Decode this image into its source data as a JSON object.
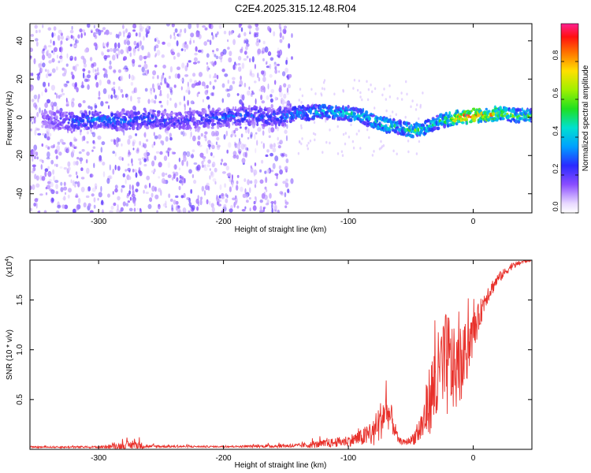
{
  "title": "C2E4.2025.315.12.48.R04",
  "colors": {
    "snr_line": "#e8302a",
    "spectrum_weak": "#8a4dff",
    "spectrum_mid": "#00e0d0",
    "spectrum_strong": "#e8202a"
  },
  "chart_data": [
    {
      "type": "heatmap",
      "xlabel": "Height of straight line (km)",
      "ylabel": "Frequency (Hz)",
      "xlim": [
        -355,
        47
      ],
      "ylim": [
        -50,
        49
      ],
      "x_ticks": [
        -300,
        -200,
        -100,
        0
      ],
      "x_tick_labels": [
        "-300",
        "-200",
        "-100",
        "0"
      ],
      "y_ticks": [
        -40,
        -20,
        0,
        20,
        40
      ],
      "y_tick_labels": [
        "-40",
        "-20",
        "0",
        "20",
        "40"
      ],
      "colorbar": {
        "label": "Normalized spectral amplitude",
        "range": [
          0,
          1
        ],
        "ticks": [
          0.0,
          0.2,
          0.4,
          0.6,
          0.8
        ],
        "tick_labels": [
          "0.0",
          "0.2",
          "0.4",
          "0.6",
          "0.8"
        ]
      },
      "ridge": {
        "description": "dominant frequency track",
        "x": [
          -345,
          -320,
          -300,
          -280,
          -260,
          -240,
          -220,
          -200,
          -180,
          -160,
          -140,
          -120,
          -100,
          -90,
          -80,
          -70,
          -60,
          -50,
          -40,
          -30,
          -20,
          -10,
          0,
          10,
          20,
          30,
          47
        ],
        "y": [
          -1,
          -2,
          -1,
          -2,
          -1,
          -2,
          -1,
          0,
          1,
          0,
          2,
          3,
          2,
          1,
          -2,
          -4,
          -5,
          -7,
          -6,
          -3,
          -1,
          0,
          1,
          1,
          2,
          1,
          1
        ],
        "amplitude": [
          0.15,
          0.3,
          0.35,
          0.3,
          0.3,
          0.25,
          0.25,
          0.3,
          0.3,
          0.3,
          0.4,
          0.45,
          0.45,
          0.5,
          0.5,
          0.5,
          0.45,
          0.6,
          0.5,
          0.5,
          0.6,
          0.95,
          0.9,
          0.85,
          0.7,
          0.6,
          0.55
        ]
      },
      "scatter_region": {
        "x_range": [
          -355,
          -145
        ],
        "y_range": [
          -50,
          49
        ],
        "amplitude_range": [
          0.05,
          0.2
        ]
      }
    },
    {
      "type": "line",
      "name": "SNR",
      "xlabel": "Height of straight line (km)",
      "ylabel": "SNR (10 * v/v)",
      "y_multiplier_label": "(x10",
      "y_multiplier_exp": "4",
      "y_multiplier_close": ")",
      "xlim": [
        -355,
        47
      ],
      "ylim": [
        0,
        19000
      ],
      "x_ticks": [
        -300,
        -200,
        -100,
        0
      ],
      "x_tick_labels": [
        "-300",
        "-200",
        "-100",
        "0"
      ],
      "y_ticks": [
        5000,
        10000,
        15000
      ],
      "y_tick_labels": [
        "0.5",
        "1.0",
        "1.5"
      ],
      "envelope": {
        "x": [
          -355,
          -300,
          -270,
          -260,
          -200,
          -140,
          -120,
          -100,
          -90,
          -80,
          -75,
          -70,
          -65,
          -60,
          -55,
          -50,
          -45,
          -40,
          -35,
          -30,
          -25,
          -20,
          -15,
          -10,
          -5,
          0,
          5,
          10,
          20,
          30,
          40,
          47
        ],
        "base": [
          200,
          200,
          300,
          250,
          250,
          300,
          400,
          700,
          900,
          1200,
          2000,
          3500,
          2500,
          800,
          600,
          800,
          1200,
          2000,
          4000,
          5000,
          6000,
          7000,
          6500,
          7000,
          9000,
          11000,
          13000,
          15000,
          17000,
          18200,
          18800,
          19000
        ],
        "amp": [
          100,
          150,
          700,
          200,
          100,
          300,
          600,
          800,
          1200,
          2000,
          3000,
          2500,
          2000,
          500,
          400,
          600,
          1500,
          3000,
          5000,
          7000,
          7500,
          8000,
          6000,
          5000,
          4500,
          3000,
          2000,
          1500,
          800,
          500,
          300,
          200
        ]
      }
    }
  ]
}
